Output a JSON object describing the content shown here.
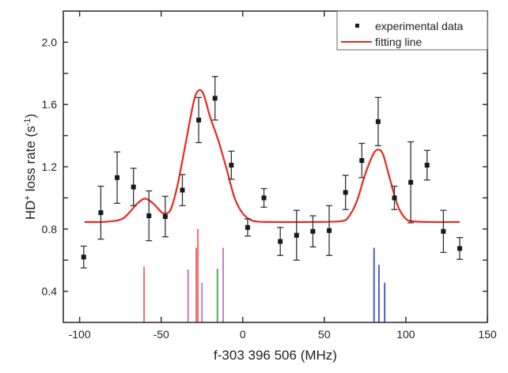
{
  "chart_data": {
    "type": "scatter",
    "xlabel": "f-303 396 506 (MHz)",
    "ylabel_main": "HD",
    "ylabel_sup": "+",
    "ylabel_rest": " loss rate (s",
    "ylabel_sup2": "-1",
    "ylabel_end": ")",
    "xlim": [
      -110,
      150
    ],
    "ylim": [
      0.2,
      2.2
    ],
    "xticks": [
      -100,
      -50,
      0,
      50,
      100,
      150
    ],
    "yticks": [
      0.4,
      0.8,
      1.2,
      1.6,
      2.0
    ],
    "yminor_step": 0.2,
    "grid": false,
    "legend": {
      "placement": "top-right",
      "entries": [
        "experimental data",
        "fitting line"
      ]
    },
    "series": [
      {
        "name": "experimental data",
        "kind": "points-with-errorbars",
        "color": "#1a1a1a",
        "x": [
          -97.5,
          -87,
          -77,
          -67,
          -57.5,
          -47.5,
          -37,
          -27,
          -17,
          -7,
          3,
          13,
          23,
          33,
          43,
          53,
          63,
          73,
          83,
          93,
          103,
          113,
          123,
          133
        ],
        "y": [
          0.62,
          0.905,
          1.13,
          1.07,
          0.885,
          0.88,
          1.05,
          1.5,
          1.64,
          1.21,
          0.81,
          1.0,
          0.72,
          0.76,
          0.785,
          0.79,
          1.035,
          1.24,
          1.49,
          1.0,
          1.1,
          1.21,
          0.785,
          0.675
        ],
        "yerr": [
          0.07,
          0.17,
          0.165,
          0.12,
          0.16,
          0.13,
          0.1,
          0.145,
          0.14,
          0.09,
          0.055,
          0.06,
          0.09,
          0.16,
          0.1,
          0.16,
          0.11,
          0.11,
          0.155,
          0.075,
          0.26,
          0.095,
          0.135,
          0.07
        ]
      },
      {
        "name": "fitting line",
        "kind": "line",
        "color": "#e8281e",
        "x": [
          -97,
          -85,
          -75,
          -70,
          -65,
          -60,
          -55,
          -50,
          -47,
          -44,
          -40,
          -35,
          -30,
          -27,
          -24,
          -20,
          -15,
          -10,
          -5,
          0,
          5,
          10,
          20,
          40,
          60,
          65,
          70,
          75,
          80,
          83,
          86,
          90,
          95,
          100,
          105,
          115,
          133
        ],
        "y": [
          0.845,
          0.846,
          0.86,
          0.9,
          0.96,
          0.995,
          0.965,
          0.91,
          0.9,
          0.93,
          1.08,
          1.35,
          1.62,
          1.69,
          1.665,
          1.52,
          1.37,
          1.19,
          1.0,
          0.9,
          0.858,
          0.847,
          0.845,
          0.845,
          0.85,
          0.88,
          0.98,
          1.15,
          1.28,
          1.31,
          1.28,
          1.13,
          0.95,
          0.865,
          0.849,
          0.845,
          0.845
        ]
      }
    ],
    "sticks": [
      {
        "x": -60.5,
        "height": 0.357,
        "color": "#f07070"
      },
      {
        "x": -33.5,
        "height": 0.34,
        "color": "#c080c8"
      },
      {
        "x": -28.5,
        "height": 0.48,
        "color": "#f07070"
      },
      {
        "x": -27.5,
        "height": 0.6,
        "color": "#f07070"
      },
      {
        "x": -25,
        "height": 0.255,
        "color": "#c080c8"
      },
      {
        "x": -15.5,
        "height": 0.345,
        "color": "#50b050"
      },
      {
        "x": -12,
        "height": 0.48,
        "color": "#c080c8"
      },
      {
        "x": 80.5,
        "height": 0.48,
        "color": "#5060c0"
      },
      {
        "x": 83.5,
        "height": 0.37,
        "color": "#5060c0"
      },
      {
        "x": 87,
        "height": 0.255,
        "color": "#5060c0"
      }
    ]
  }
}
